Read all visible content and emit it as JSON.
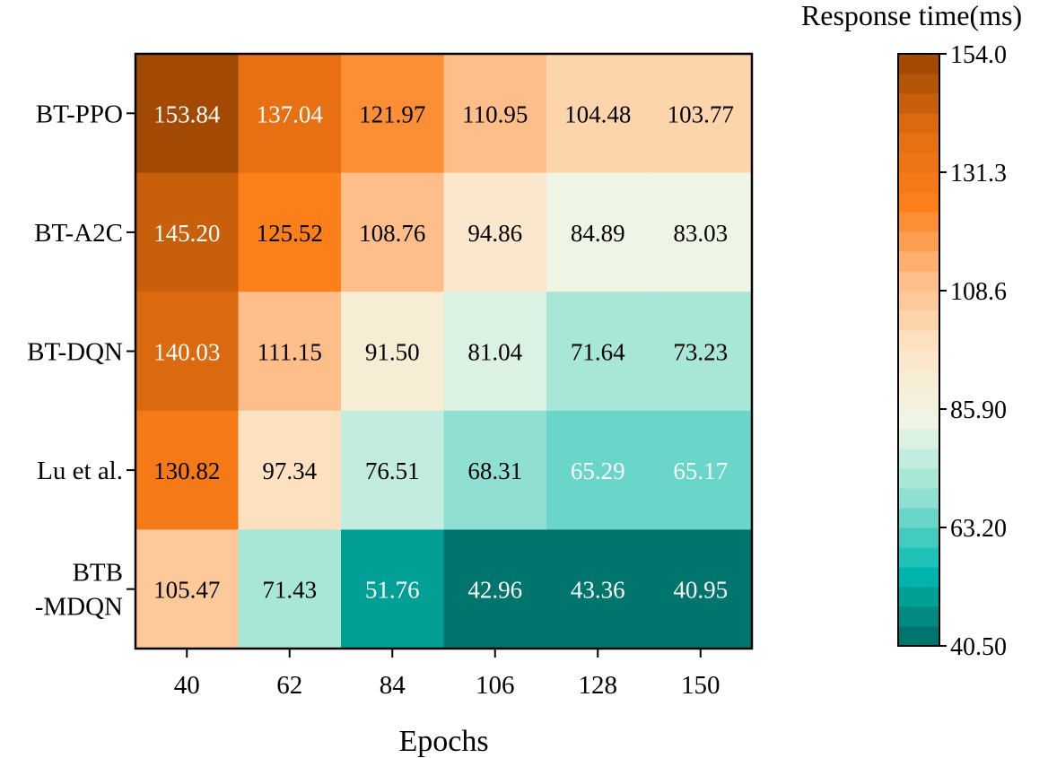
{
  "chart_data": {
    "type": "heatmap",
    "xlabel": "Epochs",
    "ylabel": "",
    "x_categories": [
      "40",
      "62",
      "84",
      "106",
      "128",
      "150"
    ],
    "y_categories": [
      {
        "lines": [
          "BT-PPO"
        ]
      },
      {
        "lines": [
          "BT-A2C"
        ]
      },
      {
        "lines": [
          "BT-DQN"
        ]
      },
      {
        "lines": [
          "Lu et al."
        ]
      },
      {
        "lines": [
          "BTB",
          "-MDQN"
        ]
      }
    ],
    "values": [
      [
        153.84,
        137.04,
        121.97,
        110.95,
        104.48,
        103.77
      ],
      [
        145.2,
        125.52,
        108.76,
        94.86,
        84.89,
        83.03
      ],
      [
        140.03,
        111.15,
        91.5,
        81.04,
        71.64,
        73.23
      ],
      [
        130.82,
        97.34,
        76.51,
        68.31,
        65.29,
        65.17
      ],
      [
        105.47,
        71.43,
        51.76,
        42.96,
        43.36,
        40.95
      ]
    ],
    "value_labels": [
      [
        "153.84",
        "137.04",
        "121.97",
        "110.95",
        "104.48",
        "103.77"
      ],
      [
        "145.20",
        "125.52",
        "108.76",
        "94.86",
        "84.89",
        "83.03"
      ],
      [
        "140.03",
        "111.15",
        "91.50",
        "81.04",
        "71.64",
        "73.23"
      ],
      [
        "130.82",
        "97.34",
        "76.51",
        "68.31",
        "65.29",
        "65.17"
      ],
      [
        "105.47",
        "71.43",
        "51.76",
        "42.96",
        "43.36",
        "40.95"
      ]
    ],
    "label_colors": [
      [
        "#ffffff",
        "#ffffff",
        "#000000",
        "#000000",
        "#000000",
        "#000000"
      ],
      [
        "#ffffff",
        "#000000",
        "#000000",
        "#000000",
        "#000000",
        "#000000"
      ],
      [
        "#ffffff",
        "#000000",
        "#000000",
        "#000000",
        "#000000",
        "#000000"
      ],
      [
        "#000000",
        "#000000",
        "#000000",
        "#000000",
        "#ffffff",
        "#ffffff"
      ],
      [
        "#000000",
        "#000000",
        "#ffffff",
        "#ffffff",
        "#ffffff",
        "#ffffff"
      ]
    ],
    "colorbar": {
      "title": "Response time(ms)",
      "vmin": 40.5,
      "vmax": 154.0,
      "levels": 30,
      "ticks": [
        {
          "value": 154.0,
          "label": "154.0"
        },
        {
          "value": 131.3,
          "label": "131.3"
        },
        {
          "value": 108.6,
          "label": "108.6"
        },
        {
          "value": 85.9,
          "label": "85.90"
        },
        {
          "value": 63.2,
          "label": "63.20"
        },
        {
          "value": 40.5,
          "label": "40.50"
        }
      ]
    },
    "colormap": [
      "#006b63",
      "#01b9b0",
      "#8fe0d2",
      "#eef6e6",
      "#fde6c8",
      "#fdbb84",
      "#fc7f19",
      "#e06c10",
      "#984502"
    ]
  }
}
